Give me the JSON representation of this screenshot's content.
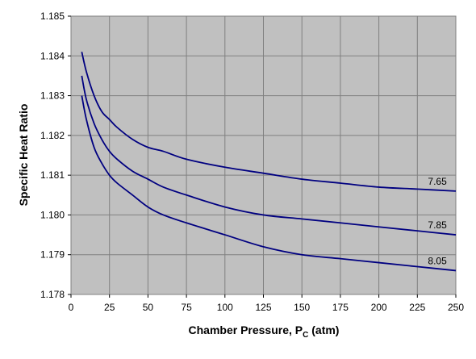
{
  "chart_data": {
    "type": "line",
    "title": "",
    "xlabel": {
      "main": "Chamber Pressure, P",
      "sub": "C",
      "suffix": " (atm)"
    },
    "ylabel": "Specific Heat Ratio",
    "xlim": [
      0,
      250
    ],
    "ylim": [
      1.178,
      1.185
    ],
    "x_ticks": [
      0,
      25,
      50,
      75,
      100,
      125,
      150,
      175,
      200,
      225,
      250
    ],
    "y_ticks": [
      "1.178",
      "1.179",
      "1.180",
      "1.181",
      "1.182",
      "1.183",
      "1.184",
      "1.185"
    ],
    "grid": true,
    "plot_background": "#C0C0C0",
    "grid_color": "#808080",
    "line_color": "#000080",
    "legend": "none",
    "series": [
      {
        "label": "7.65",
        "x": [
          7,
          10,
          15,
          20,
          25,
          30,
          40,
          50,
          60,
          75,
          100,
          125,
          150,
          175,
          200,
          225,
          250
        ],
        "y": [
          1.1841,
          1.1836,
          1.183,
          1.1826,
          1.1824,
          1.1822,
          1.1819,
          1.1817,
          1.1816,
          1.1814,
          1.1812,
          1.18105,
          1.1809,
          1.1808,
          1.1807,
          1.18065,
          1.1806
        ]
      },
      {
        "label": "7.85",
        "x": [
          7,
          10,
          15,
          20,
          25,
          30,
          40,
          50,
          60,
          75,
          100,
          125,
          150,
          175,
          200,
          225,
          250
        ],
        "y": [
          1.1835,
          1.1829,
          1.1823,
          1.1819,
          1.1816,
          1.1814,
          1.1811,
          1.1809,
          1.1807,
          1.1805,
          1.1802,
          1.18,
          1.1799,
          1.1798,
          1.1797,
          1.1796,
          1.1795
        ]
      },
      {
        "label": "8.05",
        "x": [
          7,
          10,
          15,
          20,
          25,
          30,
          40,
          50,
          60,
          75,
          100,
          125,
          150,
          175,
          200,
          225,
          250
        ],
        "y": [
          1.183,
          1.1824,
          1.1817,
          1.1813,
          1.181,
          1.1808,
          1.1805,
          1.1802,
          1.18,
          1.1798,
          1.1795,
          1.1792,
          1.179,
          1.1789,
          1.1788,
          1.1787,
          1.1786
        ]
      }
    ]
  }
}
